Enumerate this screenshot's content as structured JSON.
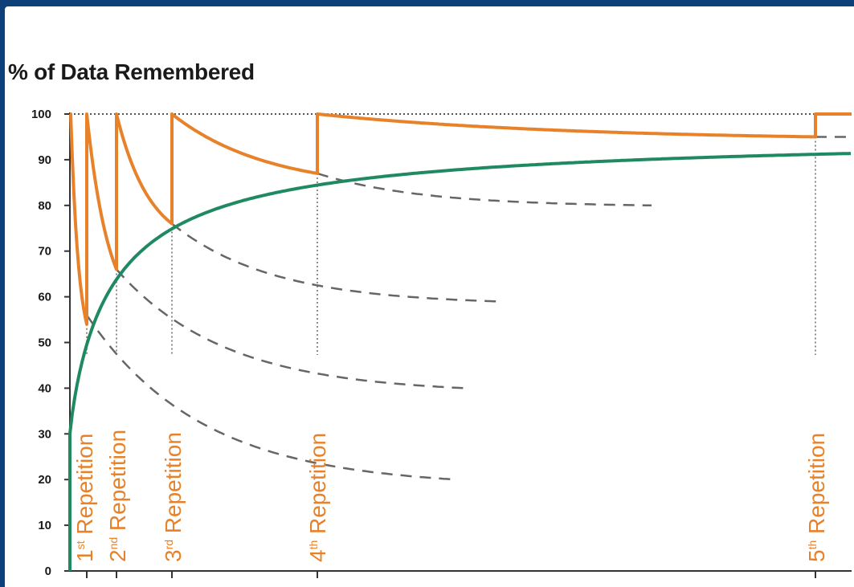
{
  "chart_data": {
    "type": "line",
    "title": "% of Data Remembered",
    "xlabel": "",
    "ylabel": "",
    "ylim": [
      0,
      100
    ],
    "y_ticks": [
      "0",
      "10",
      "20",
      "30",
      "40",
      "50",
      "60",
      "70",
      "80",
      "90",
      "100"
    ],
    "grid": false,
    "reference_line": {
      "y": 100,
      "style": "dotted"
    },
    "repetitions": [
      {
        "ordinal": "1",
        "suffix": "st",
        "word": "Repetition",
        "retention_before": 54
      },
      {
        "ordinal": "2",
        "suffix": "nd",
        "word": "Repetition",
        "retention_before": 66
      },
      {
        "ordinal": "3",
        "suffix": "rd",
        "word": "Repetition",
        "retention_before": 76
      },
      {
        "ordinal": "4",
        "suffix": "th",
        "word": "Repetition",
        "retention_before": 87
      },
      {
        "ordinal": "5",
        "suffix": "th",
        "word": "Repetition",
        "retention_before": 95
      }
    ],
    "series": [
      {
        "style": "solid",
        "color": "#e8822a",
        "description_values": "retention after each repetition, decaying toward the green curve"
      },
      {
        "style": "solid",
        "color": "#1f8a62"
      },
      {
        "style": "dashed",
        "color": "#666666"
      }
    ],
    "forgetting_without_review_endpoints": [
      20,
      40,
      59,
      80,
      95
    ]
  },
  "colors": {
    "orange": "#e8822a",
    "green": "#1f8a62",
    "dash": "#666666",
    "frame": "#0d3f78"
  }
}
